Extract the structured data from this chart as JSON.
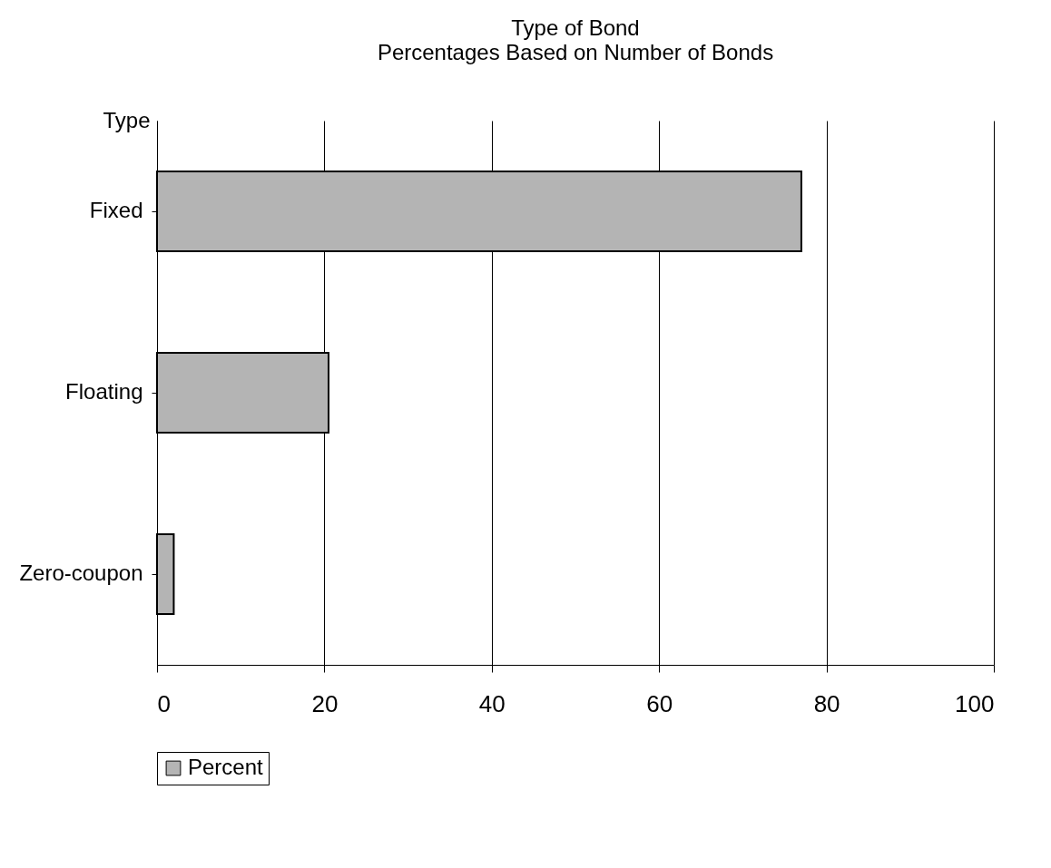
{
  "chart_data": {
    "type": "bar",
    "orientation": "horizontal",
    "title": "Type of Bond",
    "subtitle": "Percentages Based on Number of Bonds",
    "ylabel": "Type",
    "categories": [
      "Fixed",
      "Floating",
      "Zero-coupon"
    ],
    "series": [
      {
        "name": "Percent",
        "color": "#b4b4b4",
        "values": [
          77,
          20.5,
          2
        ]
      }
    ],
    "xlim": [
      0,
      100
    ],
    "xticks": [
      0,
      20,
      40,
      60,
      80,
      100
    ],
    "grid": "x",
    "legend": "bottom"
  }
}
